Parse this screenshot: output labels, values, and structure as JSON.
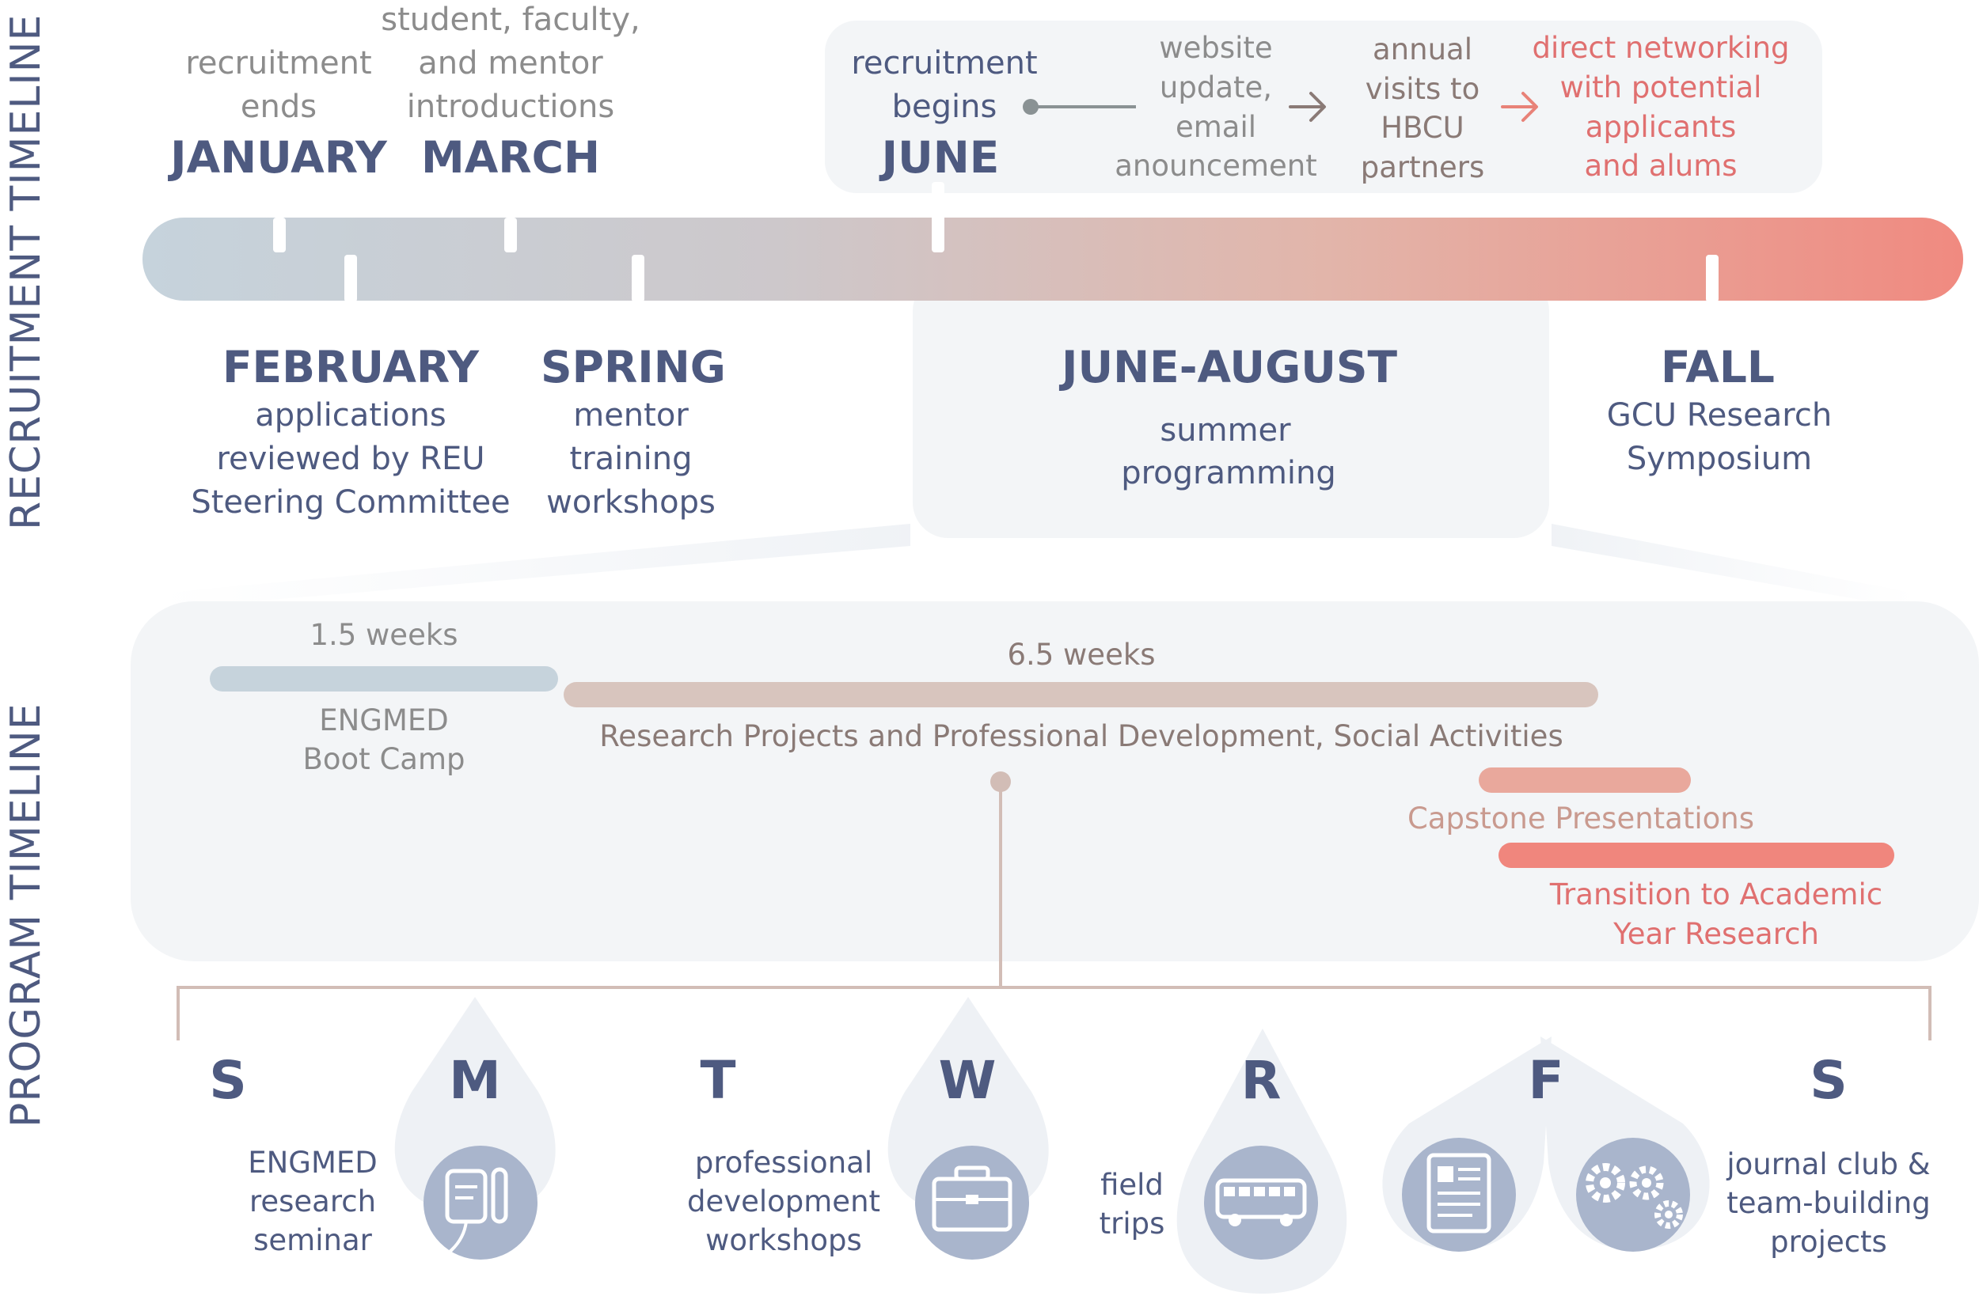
{
  "colors": {
    "navy": "#4e5a80",
    "gray_text": "#8c8c8c",
    "brown_text": "#8a7a76",
    "peach_text": "#c99a8f",
    "coral": "#e07070",
    "bar_start": "#c6d3dc",
    "bar_end": "#f08a80",
    "icon_circle": "#a9b5cc",
    "panel": "#f3f5f7"
  },
  "recruitment": {
    "side_title": "RECRUITMENT TIMELINE",
    "january": {
      "label": [
        "recruitment",
        "ends"
      ],
      "month": "JANUARY"
    },
    "march": {
      "label": [
        "student, faculty,",
        "and mentor",
        "introductions"
      ],
      "month": "MARCH"
    },
    "june": {
      "label": [
        "recruitment",
        "begins"
      ],
      "month": "JUNE"
    },
    "flow": {
      "website": [
        "website",
        "update,",
        "email",
        "anouncement"
      ],
      "visits": [
        "annual",
        "visits to",
        "HBCU",
        "partners"
      ],
      "networking": [
        "direct networking",
        "with potential",
        "applicants",
        "and alums"
      ]
    },
    "february": {
      "month": "FEBRUARY",
      "label": [
        "applications",
        "reviewed by REU",
        "Steering Committee"
      ]
    },
    "spring": {
      "month": "SPRING",
      "label": [
        "mentor",
        "training",
        "workshops"
      ]
    },
    "summer": {
      "month": "JUNE-AUGUST",
      "label": [
        "summer",
        "programming"
      ]
    },
    "fall": {
      "month": "FALL",
      "label": [
        "GCU Research",
        "Symposium"
      ]
    }
  },
  "program": {
    "side_title": "PROGRAM TIMELINE",
    "bootcamp": {
      "duration": "1.5 weeks",
      "label": [
        "ENGMED",
        "Boot Camp"
      ]
    },
    "research": {
      "duration": "6.5 weeks",
      "label": "Research Projects and Professional Development, Social Activities"
    },
    "capstone": {
      "label": "Capstone Presentations"
    },
    "transition": {
      "label": [
        "Transition to Academic",
        "Year Research"
      ]
    }
  },
  "week": {
    "days": [
      "S",
      "M",
      "T",
      "W",
      "R",
      "F",
      "S"
    ],
    "activities": {
      "monday": [
        "ENGMED",
        "research",
        "seminar"
      ],
      "wednesday": [
        "professional",
        "development",
        "workshops"
      ],
      "thursday": [
        "field",
        "trips"
      ],
      "saturday": [
        "journal club &",
        "team-building",
        "projects"
      ]
    },
    "icons": {
      "monday": "medical-device-icon",
      "wednesday": "briefcase-icon",
      "thursday": "bus-icon",
      "friday_a": "document-icon",
      "friday_b": "gears-icon"
    }
  }
}
